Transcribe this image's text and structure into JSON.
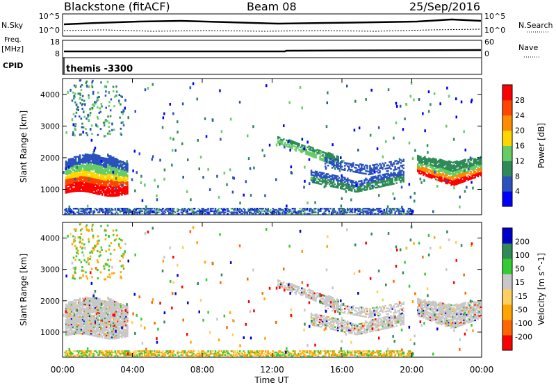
{
  "header": {
    "station": "Blackstone (fitACF)",
    "beam": "Beam 08",
    "date": "25/Sep/2016"
  },
  "noise_panel": {
    "left_label": "N.Sky",
    "right_label": "N.Search",
    "ytick_top": "10^5",
    "ytick_bottom": "10^0"
  },
  "freq_panel": {
    "left_label_1": "Freq.",
    "left_label_2": "[MHz]",
    "right_label": "Nave",
    "ytick_left_top": "18",
    "ytick_left_bottom": "8",
    "ytick_right_top": "60",
    "ytick_right_bottom": "0"
  },
  "cpid_panel": {
    "label": "CPID",
    "text": "themis -3300"
  },
  "colors": {
    "power_scale": [
      "#0000ff",
      "#2a52be",
      "#2e8b57",
      "#66cd66",
      "#ffd700",
      "#ff8c00",
      "#ff4500",
      "#ff0000"
    ],
    "velocity_scale": [
      "#ff0000",
      "#ff6600",
      "#ffa500",
      "#ffd060",
      "#c8c8c8",
      "#33cc33",
      "#2e8b57",
      "#0000cd"
    ],
    "power_main": "#2a52be",
    "velocity_main": "#c8c8c8"
  },
  "chart_data": [
    {
      "type": "heatmap",
      "panel": "power",
      "ylabel": "Slant Range [km]",
      "yticks": [
        "1000",
        "2000",
        "3000",
        "4000"
      ],
      "ylim": [
        200,
        4500
      ],
      "xlabel": "Time UT",
      "xticks": [
        "00:00",
        "04:00",
        "08:00",
        "12:00",
        "16:00",
        "20:00",
        "00:00"
      ],
      "colorbar_label": "Power [dB]",
      "colorbar_ticks": [
        "28",
        "24",
        "20",
        "16",
        "12",
        "8",
        "4"
      ],
      "regions": [
        {
          "t": [
            0.2,
            3.8
          ],
          "r": [
            900,
            2400
          ],
          "core": 1200,
          "value": "high"
        },
        {
          "t": [
            12.3,
            15.5
          ],
          "r": [
            1600,
            2700
          ],
          "value": "medium"
        },
        {
          "t": [
            14.5,
            19.5
          ],
          "r": [
            900,
            2200
          ],
          "value": "medium"
        },
        {
          "t": [
            20.5,
            24.0
          ],
          "r": [
            1200,
            2200
          ],
          "core": 1500,
          "value": "high"
        },
        {
          "t": [
            0.0,
            20.0
          ],
          "r": [
            200,
            450
          ],
          "value": "low"
        }
      ]
    },
    {
      "type": "heatmap",
      "panel": "velocity",
      "ylabel": "Slant Range [km]",
      "yticks": [
        "1000",
        "2000",
        "3000",
        "4000"
      ],
      "ylim": [
        200,
        4500
      ],
      "xlabel": "Time UT",
      "xticks": [
        "00:00",
        "04:00",
        "08:00",
        "12:00",
        "16:00",
        "20:00",
        "00:00"
      ],
      "colorbar_label": "Velocity [m s^-1]",
      "colorbar_ticks": [
        "200",
        "100",
        "50",
        "15",
        "-15",
        "-50",
        "-100",
        "-200"
      ],
      "regions": [
        {
          "t": [
            0.2,
            3.8
          ],
          "r": [
            900,
            2400
          ],
          "value": "near-zero"
        },
        {
          "t": [
            12.3,
            15.5
          ],
          "r": [
            1600,
            2700
          ],
          "value": "near-zero"
        },
        {
          "t": [
            14.5,
            19.5
          ],
          "r": [
            900,
            2200
          ],
          "value": "near-zero"
        },
        {
          "t": [
            20.5,
            24.0
          ],
          "r": [
            1200,
            2200
          ],
          "value": "near-zero"
        },
        {
          "t": [
            0.0,
            20.0
          ],
          "r": [
            200,
            450
          ],
          "value": "mixed"
        }
      ]
    }
  ]
}
